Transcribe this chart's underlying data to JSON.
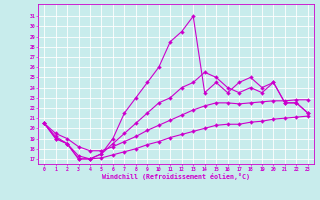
{
  "xlabel": "Windchill (Refroidissement éolien,°C)",
  "background_color": "#c8ecec",
  "grid_color": "#ffffff",
  "line_color": "#cc00cc",
  "x_ticks": [
    0,
    1,
    2,
    3,
    4,
    5,
    6,
    7,
    8,
    9,
    10,
    11,
    12,
    13,
    14,
    15,
    16,
    17,
    18,
    19,
    20,
    21,
    22,
    23
  ],
  "y_ticks": [
    17,
    18,
    19,
    20,
    21,
    22,
    23,
    24,
    25,
    26,
    27,
    28,
    29,
    30,
    31
  ],
  "ylim": [
    16.5,
    32.2
  ],
  "xlim": [
    -0.5,
    23.5
  ],
  "line_spike_x": [
    0,
    1,
    2,
    3,
    4,
    5,
    6,
    7,
    8,
    9,
    10,
    11,
    12,
    13,
    14,
    15,
    16,
    17,
    18,
    19,
    20,
    21,
    22,
    23
  ],
  "line_spike_y": [
    20.5,
    19.0,
    18.5,
    17.0,
    17.0,
    17.5,
    19.0,
    21.5,
    23.0,
    24.5,
    26.0,
    28.5,
    29.5,
    31.0,
    23.5,
    24.5,
    23.5,
    24.5,
    25.0,
    24.0,
    24.5,
    22.5,
    22.5,
    21.5
  ],
  "line_mid_x": [
    0,
    1,
    2,
    3,
    4,
    5,
    6,
    7,
    8,
    9,
    10,
    11,
    12,
    13,
    14,
    15,
    16,
    17,
    18,
    19,
    20,
    21,
    22,
    23
  ],
  "line_mid_y": [
    20.5,
    19.0,
    18.5,
    17.0,
    17.0,
    17.5,
    18.5,
    19.5,
    20.5,
    21.5,
    22.5,
    23.0,
    24.0,
    24.5,
    25.5,
    25.0,
    24.0,
    23.5,
    24.0,
    23.5,
    24.5,
    22.5,
    22.5,
    21.5
  ],
  "line_upper_smooth_x": [
    0,
    1,
    2,
    3,
    4,
    5,
    6,
    7,
    8,
    9,
    10,
    11,
    12,
    13,
    14,
    15,
    16,
    17,
    18,
    19,
    20,
    21,
    22,
    23
  ],
  "line_upper_smooth_y": [
    20.5,
    19.5,
    19.0,
    18.2,
    17.8,
    17.8,
    18.2,
    18.7,
    19.2,
    19.8,
    20.3,
    20.8,
    21.3,
    21.8,
    22.2,
    22.5,
    22.5,
    22.4,
    22.5,
    22.6,
    22.7,
    22.7,
    22.8,
    22.8
  ],
  "line_lower_smooth_x": [
    0,
    1,
    2,
    3,
    4,
    5,
    6,
    7,
    8,
    9,
    10,
    11,
    12,
    13,
    14,
    15,
    16,
    17,
    18,
    19,
    20,
    21,
    22,
    23
  ],
  "line_lower_smooth_y": [
    20.5,
    19.2,
    18.5,
    17.3,
    17.0,
    17.1,
    17.4,
    17.7,
    18.0,
    18.4,
    18.7,
    19.1,
    19.4,
    19.7,
    20.0,
    20.3,
    20.4,
    20.4,
    20.6,
    20.7,
    20.9,
    21.0,
    21.1,
    21.2
  ]
}
